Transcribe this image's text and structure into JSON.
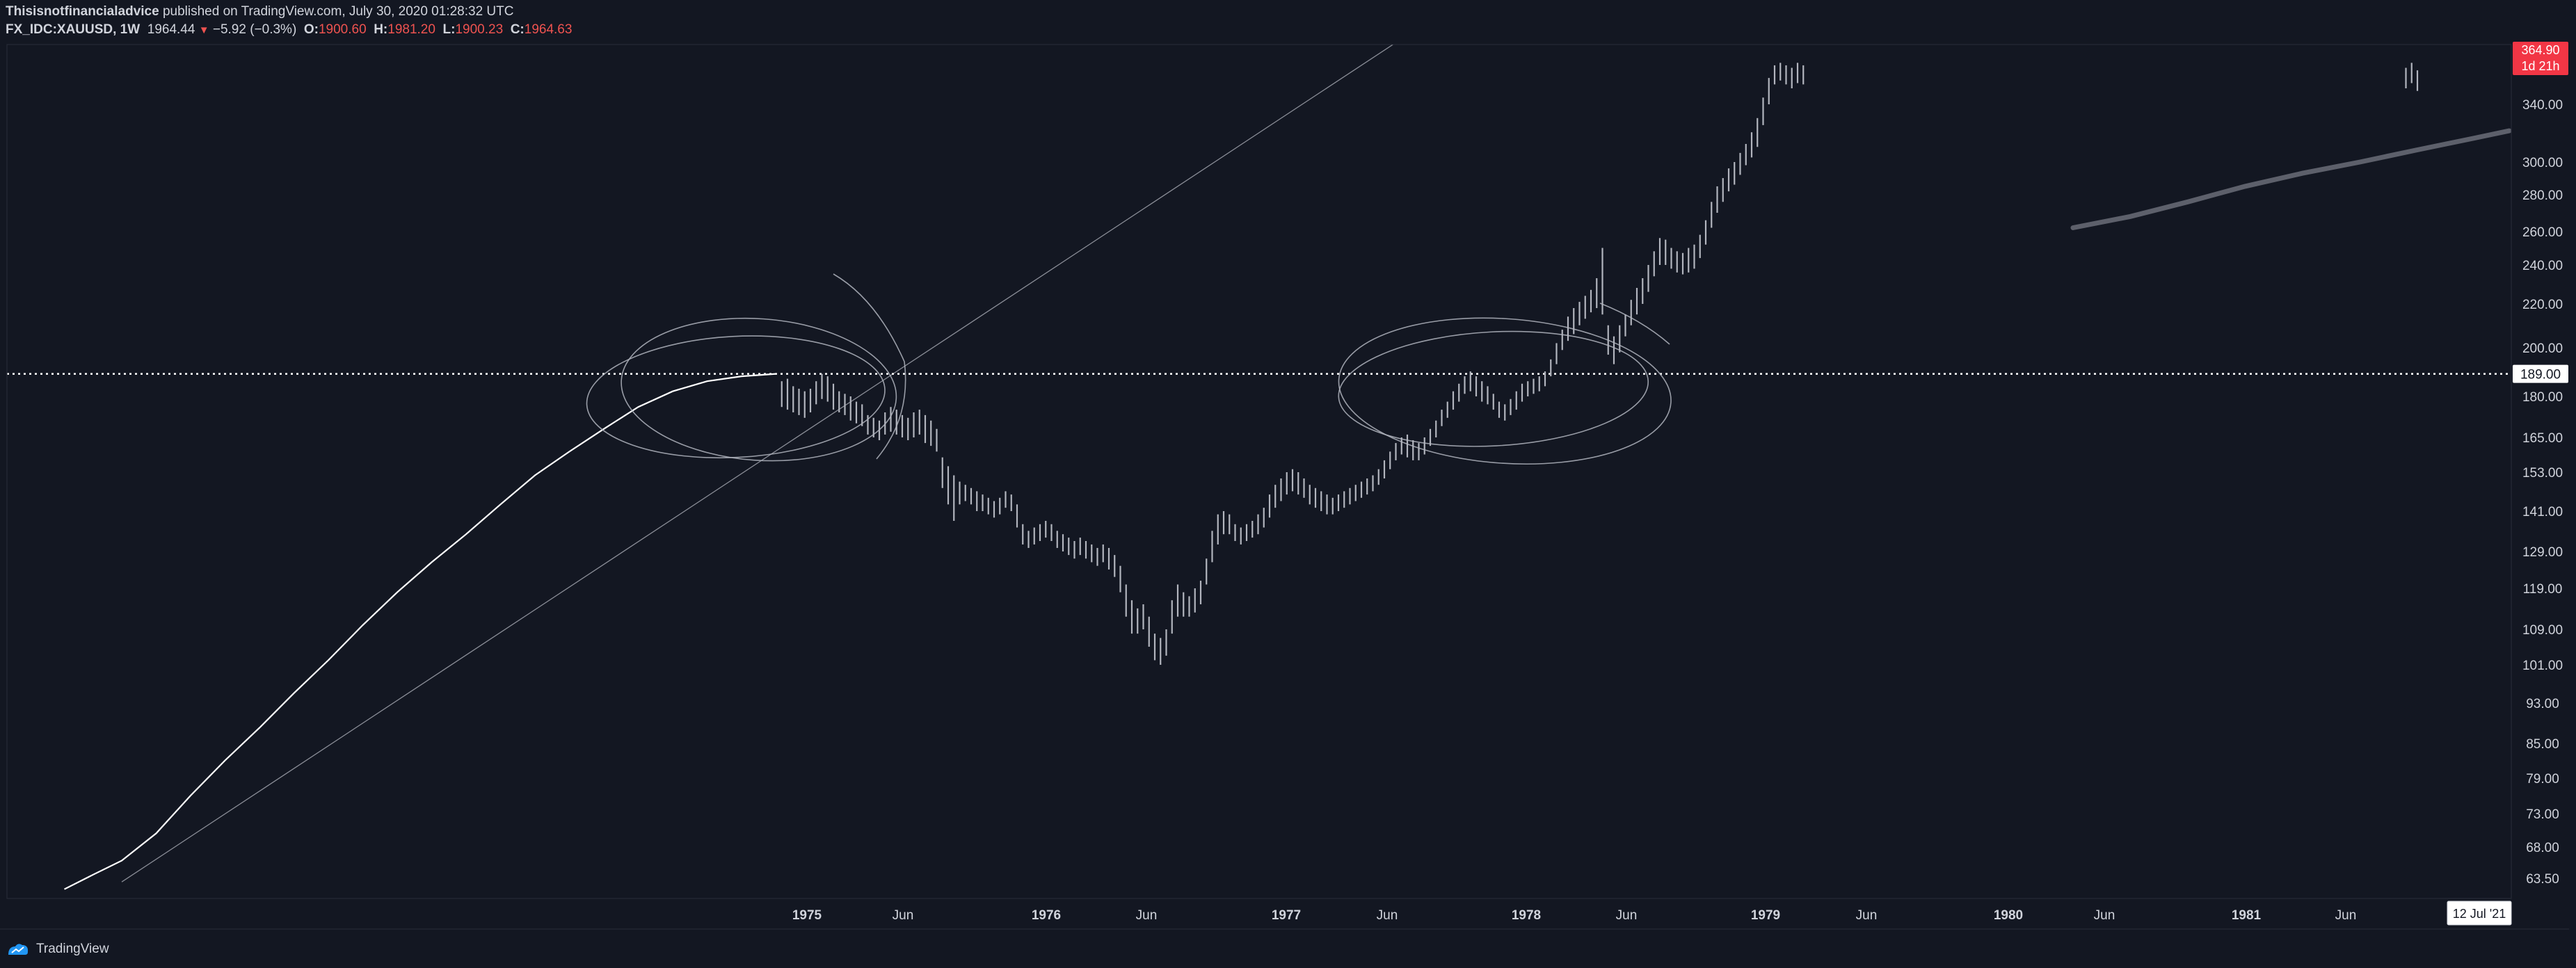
{
  "header": {
    "author": "Thisisnotfinancialadvice",
    "published": " published on TradingView.com, July 30, 2020 01:28:32 UTC",
    "symbol": "FX_IDC:XAUUSD, 1W",
    "last": "1964.44",
    "change": "−5.92 (−0.3%)",
    "o_label": "O:",
    "o_value": "1900.60",
    "h_label": "H:",
    "h_value": "1981.20",
    "l_label": "L:",
    "l_value": "1900.23",
    "c_label": "C:",
    "c_value": "1964.63"
  },
  "footer": {
    "brand": "TradingView"
  },
  "colors": {
    "background": "#131722",
    "candles": "#b2b5be",
    "drawings": "#b2b5be",
    "axis_text": "#d1d4dc",
    "price_badge": "#f23645",
    "level_line": "#ffffff"
  },
  "chart_data": {
    "type": "ohlc",
    "scale": "log",
    "y_ticks": [
      "340.00",
      "300.00",
      "280.00",
      "260.00",
      "240.00",
      "220.00",
      "200.00",
      "180.00",
      "165.00",
      "153.00",
      "141.00",
      "129.00",
      "119.00",
      "109.00",
      "101.00",
      "93.00",
      "85.00",
      "79.00",
      "73.00",
      "68.00",
      "63.50"
    ],
    "x_ticks": [
      "1975",
      "Jun",
      "1976",
      "Jun",
      "1977",
      "Jun",
      "1978",
      "Jun",
      "1979",
      "Jun",
      "1980",
      "Jun",
      "1981",
      "Jun"
    ],
    "level_line": {
      "value": 189,
      "label": "189.00"
    },
    "price_badge": {
      "value": "364.90",
      "countdown": "1d 21h"
    },
    "crosshair_date": "12 Jul '21",
    "series_path": [
      [
        0.5,
        62
      ],
      [
        0.75,
        64
      ],
      [
        1.0,
        66
      ],
      [
        1.3,
        70
      ],
      [
        1.6,
        76
      ],
      [
        1.9,
        82
      ],
      [
        2.2,
        88
      ],
      [
        2.5,
        95
      ],
      [
        2.8,
        102
      ],
      [
        3.1,
        110
      ],
      [
        3.4,
        118
      ],
      [
        3.7,
        126
      ],
      [
        4.0,
        134
      ],
      [
        4.3,
        143
      ],
      [
        4.6,
        152
      ],
      [
        4.9,
        160
      ],
      [
        5.2,
        168
      ],
      [
        5.5,
        176
      ],
      [
        5.8,
        182
      ],
      [
        6.1,
        186
      ],
      [
        6.4,
        188
      ],
      [
        6.7,
        189
      ]
    ],
    "candles": [
      [
        6.75,
        186,
        176
      ],
      [
        6.8,
        187,
        175
      ],
      [
        6.85,
        184,
        174
      ],
      [
        6.9,
        183,
        173
      ],
      [
        6.95,
        182,
        172
      ],
      [
        7.0,
        183,
        174
      ],
      [
        7.05,
        186,
        177
      ],
      [
        7.1,
        189,
        179
      ],
      [
        7.15,
        188,
        178
      ],
      [
        7.2,
        185,
        175
      ],
      [
        7.25,
        182,
        174
      ],
      [
        7.3,
        181,
        173
      ],
      [
        7.35,
        180,
        171
      ],
      [
        7.4,
        178,
        170
      ],
      [
        7.45,
        177,
        169
      ],
      [
        7.5,
        173,
        166
      ],
      [
        7.55,
        172,
        165
      ],
      [
        7.6,
        171,
        164
      ],
      [
        7.65,
        174,
        166
      ],
      [
        7.7,
        176,
        167
      ],
      [
        7.75,
        175,
        166
      ],
      [
        7.8,
        173,
        165
      ],
      [
        7.85,
        172,
        164
      ],
      [
        7.9,
        174,
        165
      ],
      [
        7.95,
        175,
        166
      ],
      [
        8.0,
        173,
        163
      ],
      [
        8.05,
        171,
        162
      ],
      [
        8.1,
        168,
        160
      ],
      [
        8.15,
        158,
        148
      ],
      [
        8.2,
        155,
        143
      ],
      [
        8.25,
        152,
        138
      ],
      [
        8.3,
        150,
        143
      ],
      [
        8.35,
        149,
        144
      ],
      [
        8.4,
        148,
        143
      ],
      [
        8.45,
        147,
        141
      ],
      [
        8.5,
        146,
        141
      ],
      [
        8.55,
        145,
        140
      ],
      [
        8.6,
        144,
        139
      ],
      [
        8.65,
        145,
        140
      ],
      [
        8.7,
        147,
        142
      ],
      [
        8.75,
        146,
        141
      ],
      [
        8.8,
        143,
        136
      ],
      [
        8.85,
        137,
        131
      ],
      [
        8.9,
        135,
        130
      ],
      [
        8.95,
        136,
        131
      ],
      [
        9.0,
        137,
        132
      ],
      [
        9.05,
        138,
        133
      ],
      [
        9.1,
        137,
        132
      ],
      [
        9.15,
        135,
        130
      ],
      [
        9.2,
        134,
        129
      ],
      [
        9.25,
        133,
        128
      ],
      [
        9.3,
        132,
        127
      ],
      [
        9.35,
        133,
        128
      ],
      [
        9.4,
        132,
        127
      ],
      [
        9.45,
        131,
        126
      ],
      [
        9.5,
        130,
        125
      ],
      [
        9.55,
        131,
        126
      ],
      [
        9.6,
        130,
        124
      ],
      [
        9.65,
        128,
        122
      ],
      [
        9.7,
        125,
        118
      ],
      [
        9.75,
        120,
        112
      ],
      [
        9.8,
        116,
        108
      ],
      [
        9.85,
        114,
        108
      ],
      [
        9.9,
        115,
        109
      ],
      [
        9.95,
        112,
        105
      ],
      [
        10.0,
        108,
        102
      ],
      [
        10.05,
        107,
        101
      ],
      [
        10.1,
        109,
        103
      ],
      [
        10.15,
        116,
        108
      ],
      [
        10.2,
        120,
        112
      ],
      [
        10.25,
        118,
        112
      ],
      [
        10.3,
        117,
        112
      ],
      [
        10.35,
        119,
        113
      ],
      [
        10.4,
        121,
        115
      ],
      [
        10.45,
        127,
        120
      ],
      [
        10.5,
        135,
        126
      ],
      [
        10.55,
        140,
        131
      ],
      [
        10.6,
        141,
        134
      ],
      [
        10.65,
        140,
        134
      ],
      [
        10.7,
        137,
        132
      ],
      [
        10.75,
        136,
        131
      ],
      [
        10.8,
        137,
        132
      ],
      [
        10.85,
        138,
        133
      ],
      [
        10.9,
        140,
        134
      ],
      [
        10.95,
        142,
        136
      ],
      [
        11.0,
        146,
        139
      ],
      [
        11.05,
        149,
        142
      ],
      [
        11.1,
        151,
        144
      ],
      [
        11.15,
        153,
        146
      ],
      [
        11.2,
        154,
        147
      ],
      [
        11.25,
        153,
        146
      ],
      [
        11.3,
        151,
        145
      ],
      [
        11.35,
        149,
        143
      ],
      [
        11.4,
        148,
        142
      ],
      [
        11.45,
        147,
        141
      ],
      [
        11.5,
        146,
        140
      ],
      [
        11.55,
        145,
        140
      ],
      [
        11.6,
        146,
        141
      ],
      [
        11.65,
        147,
        142
      ],
      [
        11.7,
        148,
        143
      ],
      [
        11.75,
        149,
        144
      ],
      [
        11.8,
        150,
        145
      ],
      [
        11.85,
        151,
        146
      ],
      [
        11.9,
        152,
        147
      ],
      [
        11.95,
        154,
        149
      ],
      [
        12.0,
        157,
        151
      ],
      [
        12.05,
        160,
        154
      ],
      [
        12.1,
        163,
        157
      ],
      [
        12.15,
        165,
        159
      ],
      [
        12.2,
        166,
        158
      ],
      [
        12.25,
        164,
        157
      ],
      [
        12.3,
        163,
        157
      ],
      [
        12.35,
        165,
        159
      ],
      [
        12.4,
        168,
        162
      ],
      [
        12.45,
        171,
        165
      ],
      [
        12.5,
        175,
        169
      ],
      [
        12.55,
        178,
        172
      ],
      [
        12.6,
        182,
        175
      ],
      [
        12.65,
        185,
        178
      ],
      [
        12.7,
        188,
        181
      ],
      [
        12.75,
        190,
        182
      ],
      [
        12.8,
        188,
        180
      ],
      [
        12.85,
        186,
        178
      ],
      [
        12.9,
        184,
        177
      ],
      [
        12.95,
        181,
        175
      ],
      [
        13.0,
        178,
        172
      ],
      [
        13.05,
        177,
        171
      ],
      [
        13.1,
        179,
        173
      ],
      [
        13.15,
        182,
        175
      ],
      [
        13.2,
        185,
        178
      ],
      [
        13.25,
        186,
        180
      ],
      [
        13.3,
        187,
        181
      ],
      [
        13.35,
        188,
        182
      ],
      [
        13.4,
        190,
        184
      ],
      [
        13.45,
        195,
        188
      ],
      [
        13.5,
        202,
        193
      ],
      [
        13.55,
        208,
        199
      ],
      [
        13.6,
        214,
        203
      ],
      [
        13.65,
        218,
        206
      ],
      [
        13.7,
        221,
        210
      ],
      [
        13.75,
        224,
        213
      ],
      [
        13.8,
        227,
        216
      ],
      [
        13.85,
        233,
        218
      ],
      [
        13.9,
        250,
        215
      ],
      [
        13.95,
        210,
        197
      ],
      [
        14.0,
        205,
        193
      ],
      [
        14.05,
        210,
        198
      ],
      [
        14.1,
        215,
        205
      ],
      [
        14.15,
        222,
        210
      ],
      [
        14.2,
        228,
        215
      ],
      [
        14.25,
        233,
        220
      ],
      [
        14.3,
        240,
        226
      ],
      [
        14.35,
        248,
        234
      ],
      [
        14.4,
        256,
        240
      ],
      [
        14.45,
        255,
        240
      ],
      [
        14.5,
        250,
        238
      ],
      [
        14.55,
        248,
        236
      ],
      [
        14.6,
        247,
        235
      ],
      [
        14.65,
        250,
        236
      ],
      [
        14.7,
        252,
        238
      ],
      [
        14.75,
        258,
        244
      ],
      [
        14.8,
        266,
        252
      ],
      [
        14.85,
        276,
        262
      ],
      [
        14.9,
        285,
        270
      ],
      [
        14.95,
        290,
        276
      ],
      [
        15.0,
        296,
        282
      ],
      [
        15.05,
        300,
        286
      ],
      [
        15.1,
        306,
        292
      ],
      [
        15.15,
        312,
        298
      ],
      [
        15.2,
        320,
        303
      ],
      [
        15.25,
        330,
        310
      ],
      [
        15.3,
        345,
        325
      ],
      [
        15.35,
        360,
        340
      ],
      [
        15.4,
        370,
        355
      ],
      [
        15.45,
        372,
        358
      ],
      [
        15.5,
        370,
        355
      ],
      [
        15.55,
        368,
        352
      ],
      [
        15.6,
        372,
        356
      ],
      [
        15.65,
        370,
        355
      ],
      [
        20.9,
        368,
        352
      ],
      [
        20.95,
        372,
        356
      ],
      [
        21.0,
        366,
        350
      ]
    ],
    "ma_segment": [
      [
        18.0,
        262
      ],
      [
        18.5,
        268
      ],
      [
        19.0,
        276
      ],
      [
        19.5,
        285
      ],
      [
        20.0,
        293
      ],
      [
        20.5,
        300
      ],
      [
        21.0,
        308
      ],
      [
        21.5,
        316
      ],
      [
        21.8,
        321
      ]
    ],
    "trendline": [
      [
        1.0,
        63
      ],
      [
        12.5,
        415
      ]
    ],
    "annotations": [
      {
        "type": "ellipse",
        "cx": 6.35,
        "cy": 180,
        "rx": 1.3,
        "ry_top": 205,
        "ry_bottom": 158
      },
      {
        "type": "ellipse",
        "cx": 6.55,
        "cy": 182,
        "rx": 1.2,
        "ry_top": 213,
        "ry_bottom": 157
      },
      {
        "type": "ellipse",
        "cx": 12.95,
        "cy": 180,
        "rx": 1.35,
        "ry_top": 207,
        "ry_bottom": 162
      },
      {
        "type": "ellipse",
        "cx": 13.05,
        "cy": 181,
        "rx": 1.45,
        "ry_top": 213,
        "ry_bottom": 156
      }
    ]
  }
}
